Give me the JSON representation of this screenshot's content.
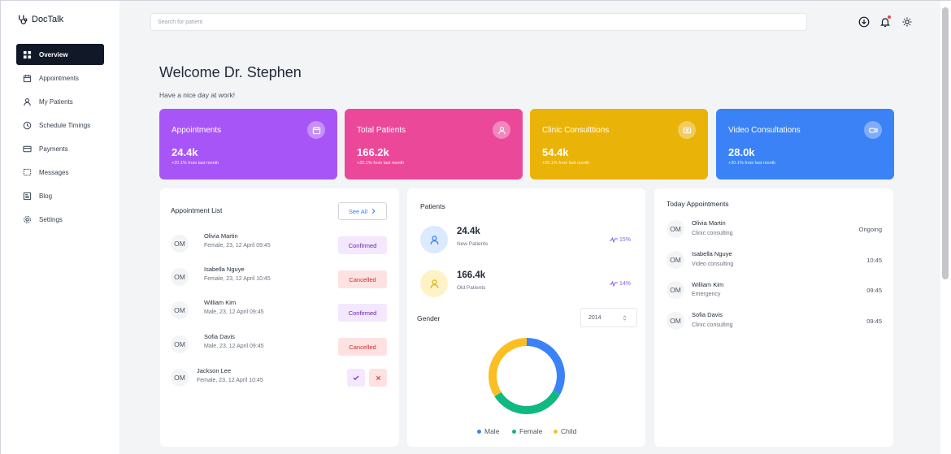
{
  "app": {
    "name": "DocTalk"
  },
  "sidebar": {
    "items": [
      {
        "label": "Overview",
        "icon": "grid-icon"
      },
      {
        "label": "Appointments",
        "icon": "calendar-icon"
      },
      {
        "label": "My Patients",
        "icon": "user-icon"
      },
      {
        "label": "Schedule Timings",
        "icon": "clock-icon"
      },
      {
        "label": "Payments",
        "icon": "card-icon"
      },
      {
        "label": "Messages",
        "icon": "message-icon"
      },
      {
        "label": "Blog",
        "icon": "blog-icon"
      },
      {
        "label": "Settings",
        "icon": "gear-icon"
      }
    ]
  },
  "search": {
    "placeholder": "Search for patient"
  },
  "header": {
    "welcome": "Welcome Dr. Stephen",
    "subtitle": "Have a nice day at work!"
  },
  "stats": [
    {
      "label": "Appointments",
      "value": "24.4k",
      "change": "+20.1% from last month",
      "color": "#a855f7"
    },
    {
      "label": "Total Patients",
      "value": "166.2k",
      "change": "+20.1% from last month",
      "color": "#ec4899"
    },
    {
      "label": "Clinic Consulttions",
      "value": "54.4k",
      "change": "+20.1% from last month",
      "color": "#eab308"
    },
    {
      "label": "Video Consultations",
      "value": "28.0k",
      "change": "+20.1% from last month",
      "color": "#3b82f6"
    }
  ],
  "appointment_list": {
    "title": "Appointment List",
    "see_all": "See All",
    "rows": [
      {
        "initials": "OM",
        "name": "Olivia Martin",
        "details": "Female, 23, 12 April 09:45",
        "status": "Confirmed"
      },
      {
        "initials": "OM",
        "name": "Isabella Nguye",
        "details": "Female, 23, 12 April 10:45",
        "status": "Cancelled"
      },
      {
        "initials": "OM",
        "name": "William Kim",
        "details": "Male, 23, 12 April 09:45",
        "status": "Confirmed"
      },
      {
        "initials": "OM",
        "name": "Sofia Davis",
        "details": "Male, 23, 12 April 09:45",
        "status": "Cancelled"
      },
      {
        "initials": "OM",
        "name": "Jackson Lee",
        "details": "Female, 23, 12 April 10:45",
        "status": ""
      }
    ]
  },
  "patients": {
    "title": "Patients",
    "new": {
      "value": "24.4k",
      "label": "New Patients",
      "trend": "15%"
    },
    "old": {
      "value": "166.4k",
      "label": "Old Patients",
      "trend": "14%"
    }
  },
  "gender": {
    "title": "Gender",
    "year": "2014",
    "legend": [
      "Male",
      "Female",
      "Child"
    ]
  },
  "chart_data": {
    "type": "pie",
    "categories": [
      "Male",
      "Female",
      "Child"
    ],
    "values": [
      33,
      33,
      34
    ],
    "colors": [
      "#3b82f6",
      "#10b981",
      "#fbbf24"
    ],
    "title": "Gender"
  },
  "today_appointments": {
    "title": "Today Appointments",
    "rows": [
      {
        "initials": "OM",
        "name": "Olivia Martin",
        "type": "Clinic consulting",
        "time": "Ongoing"
      },
      {
        "initials": "OM",
        "name": "Isabella Nguye",
        "type": "Video consulting",
        "time": "10:45"
      },
      {
        "initials": "OM",
        "name": "William Kim",
        "type": "Emergency",
        "time": "09:45"
      },
      {
        "initials": "OM",
        "name": "Sofia Davis",
        "type": "Clinic consulting",
        "time": "09:45"
      }
    ]
  }
}
